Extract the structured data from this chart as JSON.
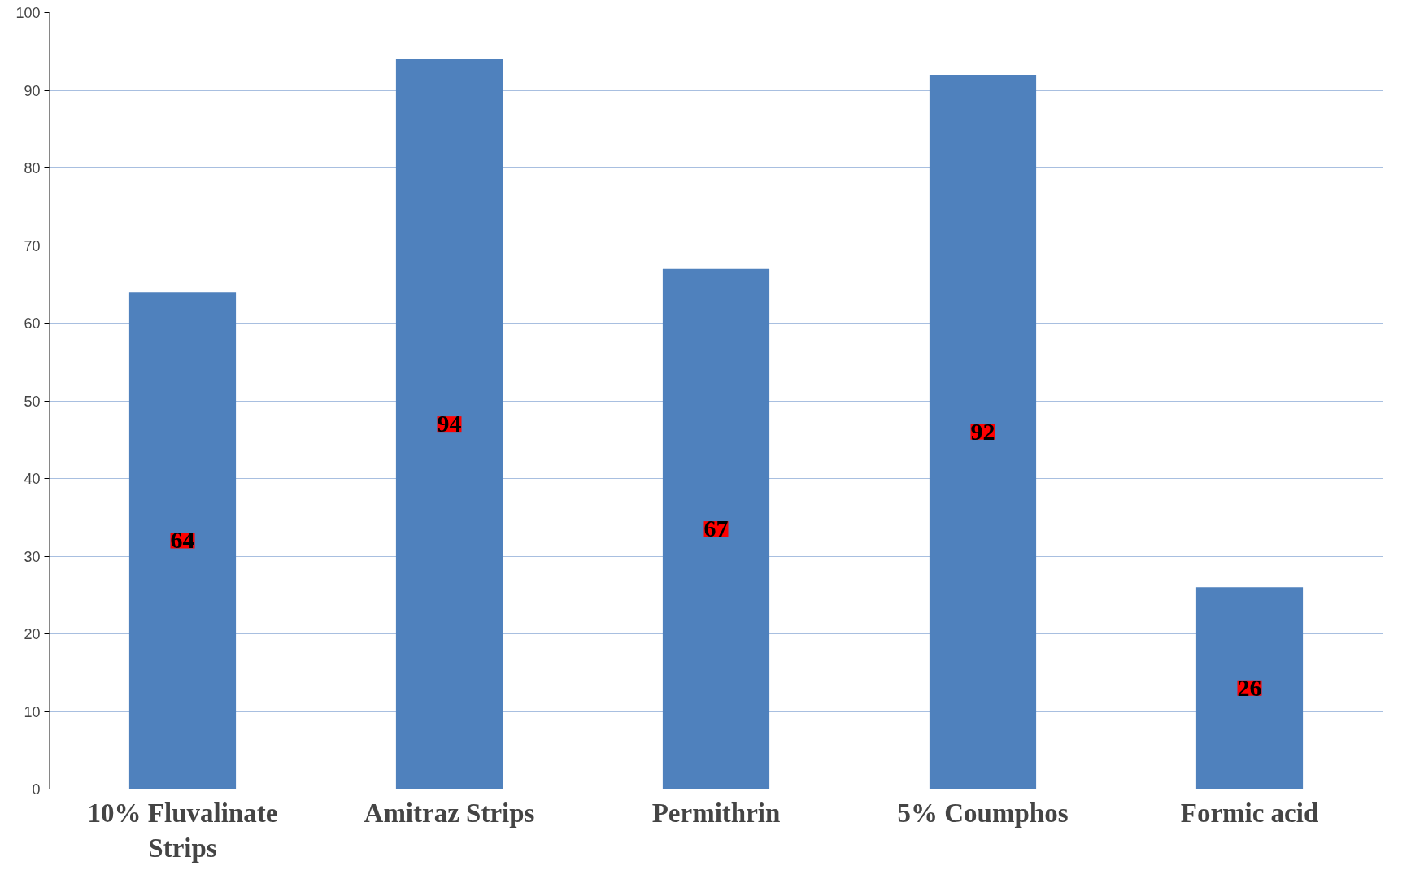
{
  "chart_data": {
    "type": "bar",
    "categories": [
      "10% Fluvalinate Strips",
      "Amitraz Strips",
      "Permithrin",
      "5% Coumphos",
      "Formic acid"
    ],
    "values": [
      64,
      94,
      67,
      92,
      26
    ],
    "color": "#4f81bd",
    "ylim": [
      0,
      100
    ],
    "yticks": [
      0,
      10,
      20,
      30,
      40,
      50,
      60,
      70,
      80,
      90,
      100
    ],
    "grid": "y",
    "data_labels": true
  }
}
